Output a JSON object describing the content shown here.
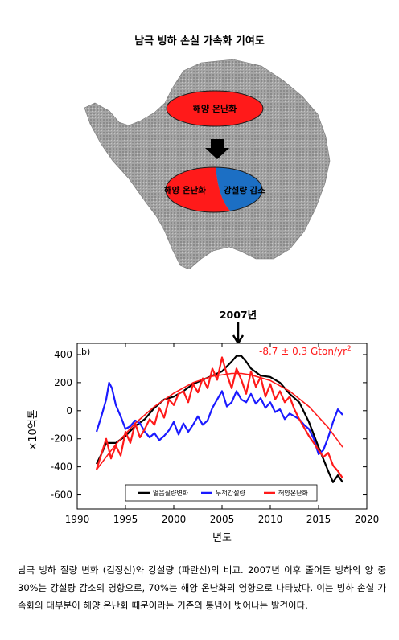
{
  "diagram": {
    "title": "남극 빙하 손실 가속화 기여도",
    "top_ellipse_label": "해양 온난화",
    "bottom_left_label": "해양 온난화",
    "bottom_right_label": "강설량 감소",
    "colors": {
      "ocean_warming": "#ff1a1a",
      "snowfall": "#1c6fc4",
      "arrow": "#000000",
      "ice": "#9a9a9a"
    }
  },
  "chart_data": {
    "type": "line",
    "panel_label": "b)",
    "annotation_year": "2007년",
    "trend_text": "-8.7 ± 0.3 Gton/yr²",
    "ylabel": "×10억톤",
    "xlabel": "년도",
    "xlim": [
      1990,
      2020
    ],
    "ylim": [
      -700,
      480
    ],
    "xticks": [
      "1990",
      "1995",
      "2000",
      "2005",
      "2010",
      "2015",
      "2020"
    ],
    "yticks": [
      "400",
      "200",
      "0",
      "-200",
      "-400",
      "-600"
    ],
    "legend_placement": "bottom-center",
    "series": [
      {
        "name": "얼음질량변화",
        "color": "#000000",
        "x": [
          1992,
          1992.5,
          1993,
          1994,
          1995,
          1996,
          1997,
          1998,
          1999,
          2000,
          2001,
          2002,
          2003,
          2004,
          2005,
          2006,
          2006.5,
          2007,
          2007.5,
          2008,
          2009,
          2010,
          2011,
          2012,
          2013,
          2014,
          2015,
          2016,
          2016.5,
          2017,
          2017.5
        ],
        "y": [
          -380,
          -310,
          -230,
          -230,
          -180,
          -110,
          -60,
          20,
          80,
          100,
          140,
          190,
          220,
          250,
          280,
          350,
          390,
          390,
          350,
          300,
          250,
          240,
          200,
          120,
          60,
          -80,
          -260,
          -430,
          -510,
          -460,
          -510
        ]
      },
      {
        "name": "누적강설량",
        "color": "#1a1aff",
        "x": [
          1992,
          1992.5,
          1993,
          1993.3,
          1993.6,
          1994,
          1994.5,
          1995,
          1995.5,
          1996,
          1996.5,
          1997,
          1997.5,
          1998,
          1998.5,
          1999,
          1999.5,
          2000,
          2000.5,
          2001,
          2001.5,
          2002,
          2002.5,
          2003,
          2003.5,
          2004,
          2004.5,
          2005,
          2005.5,
          2006,
          2006.5,
          2007,
          2007.5,
          2008,
          2008.5,
          2009,
          2009.5,
          2010,
          2010.5,
          2011,
          2011.5,
          2012,
          2012.5,
          2013,
          2013.5,
          2014,
          2014.5,
          2015,
          2015.5,
          2016,
          2016.5,
          2017,
          2017.5
        ],
        "y": [
          -150,
          -40,
          80,
          200,
          160,
          40,
          -40,
          -130,
          -110,
          -70,
          -90,
          -150,
          -190,
          -160,
          -210,
          -180,
          -140,
          -80,
          -170,
          -90,
          -150,
          -100,
          -40,
          -100,
          -70,
          20,
          80,
          140,
          30,
          60,
          140,
          80,
          60,
          120,
          50,
          90,
          20,
          60,
          -10,
          10,
          -60,
          -20,
          -40,
          -60,
          -100,
          -130,
          -200,
          -310,
          -280,
          -190,
          -80,
          10,
          -30
        ]
      },
      {
        "name": "해양온난화",
        "color": "#ff1a1a",
        "x": [
          1992,
          1992.5,
          1993,
          1993.5,
          1994,
          1994.5,
          1995,
          1995.5,
          1996,
          1996.5,
          1997,
          1997.5,
          1998,
          1998.5,
          1999,
          1999.5,
          2000,
          2000.5,
          2001,
          2001.5,
          2002,
          2002.5,
          2003,
          2003.5,
          2004,
          2004.5,
          2005,
          2005.5,
          2006,
          2006.5,
          2007,
          2007.5,
          2008,
          2008.5,
          2009,
          2009.5,
          2010,
          2010.5,
          2011,
          2011.5,
          2012,
          2012.5,
          2013,
          2013.5,
          2014,
          2014.5,
          2015,
          2015.5,
          2016,
          2016.5,
          2017,
          2017.5
        ],
        "y": [
          -420,
          -310,
          -200,
          -340,
          -250,
          -320,
          -150,
          -230,
          -90,
          -190,
          -130,
          -60,
          -100,
          20,
          -50,
          80,
          40,
          120,
          140,
          60,
          190,
          130,
          230,
          160,
          300,
          220,
          380,
          260,
          160,
          300,
          220,
          120,
          280,
          170,
          240,
          100,
          190,
          80,
          140,
          60,
          100,
          10,
          -60,
          -120,
          -180,
          -230,
          -280,
          -330,
          -300,
          -390,
          -430,
          -480
        ]
      },
      {
        "name": "",
        "color": "#ff1a1a",
        "style": "trend",
        "x": [
          1992,
          1994,
          1996,
          1998,
          2000,
          2002,
          2004,
          2006,
          2007,
          2008,
          2010,
          2012,
          2014,
          2016,
          2017.5
        ],
        "y": [
          -420,
          -240,
          -90,
          30,
          125,
          200,
          245,
          265,
          265,
          255,
          215,
          140,
          30,
          -120,
          -260
        ]
      }
    ]
  },
  "caption": "남극 빙하 질량 변화 (검정선)와 강설량 (파란선)의 비교. 2007년 이후 줄어든 빙하의 양 중 30%는 강설량 감소의 영향으로, 70%는 해양 온난화의 영향으로 나타났다. 이는 빙하 손실 가속화의 대부분이 해양 온난화 때문이라는 기존의 통념에 벗어나는 발견이다."
}
